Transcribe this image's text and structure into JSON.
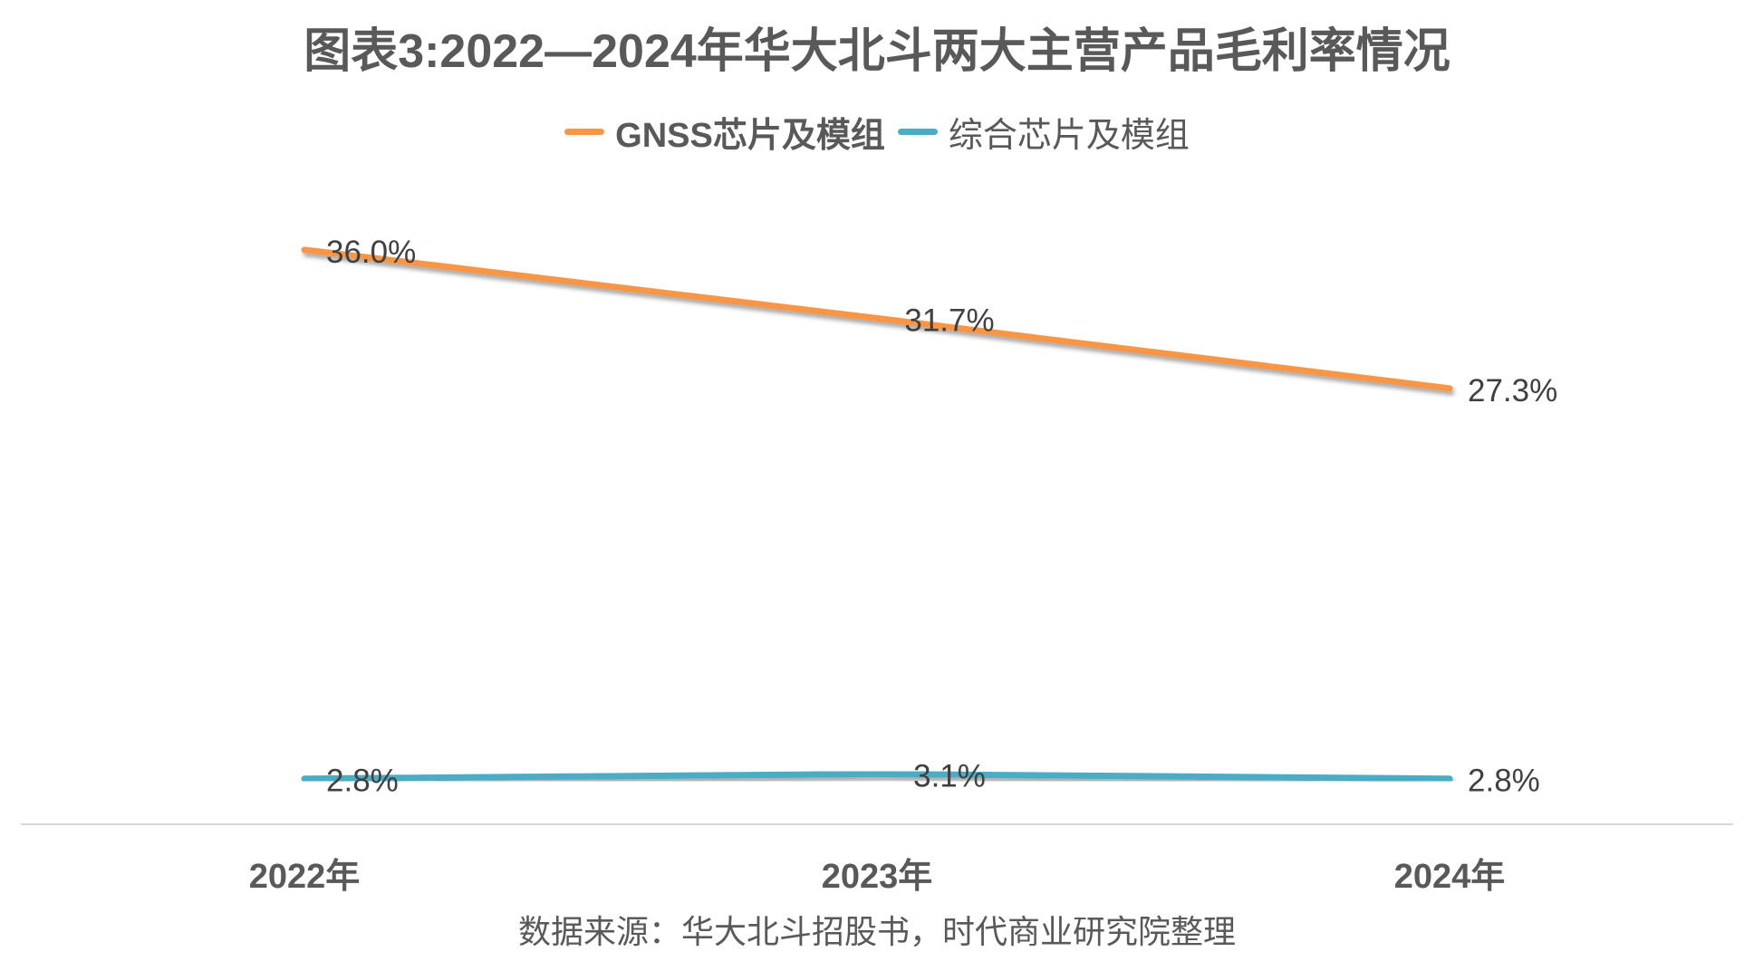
{
  "chart_data": {
    "type": "line",
    "title": "图表3:2022—2024年华大北斗两大主营产品毛利率情况",
    "categories": [
      "2022年",
      "2023年",
      "2024年"
    ],
    "series": [
      {
        "name": "GNSS芯片及模组",
        "color": "#F79646",
        "values": [
          36.0,
          31.7,
          27.3
        ],
        "labels": [
          "36.0%",
          "31.7%",
          "27.3%"
        ]
      },
      {
        "name": "综合芯片及模组",
        "color": "#4BACC6",
        "values": [
          2.8,
          3.1,
          2.8
        ],
        "labels": [
          "2.8%",
          "3.1%",
          "2.8%"
        ]
      }
    ],
    "xlabel": "",
    "ylabel": "",
    "ylim": [
      0,
      40
    ],
    "grid": false,
    "legend_position": "top-center",
    "y_axis_visible": false,
    "source": "数据来源：华大北斗招股书，时代商业研究院整理"
  }
}
